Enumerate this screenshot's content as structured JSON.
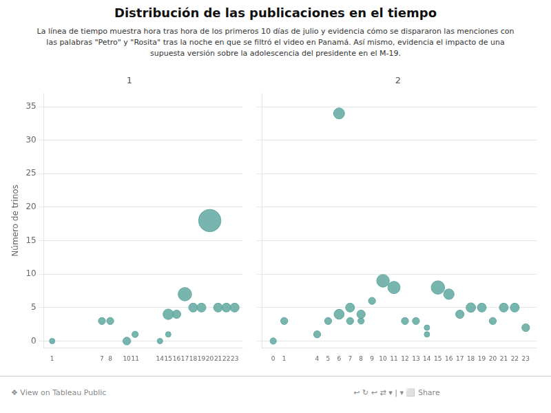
{
  "title": "Distribución de las publicaciones en el tiempo",
  "subtitle": "La línea de tiempo muestra hora tras hora de los primeros 10 días de julio y evidencia cómo se dispararon las menciones con\nlas palabras \"Petro\" y \"Rosita\" tras la noche en que se filtró el video en Panamá. Así mismo, evidencia el impacto de una\nsupuesta versión sobre la adolescencia del presidente en el M-19.",
  "annotations": [
    "❖ View on Tableau Public",
    "↩  ↻  ↩  ⇄  ▾  |  ▾  ⬜  Share"
  ],
  "chart_data": [
    {
      "type": "bubble",
      "title": "1",
      "ylabel": "Número de trinos",
      "x": [
        1,
        7,
        8,
        10,
        11,
        14,
        15,
        15,
        16,
        17,
        18,
        19,
        20,
        21,
        22,
        23
      ],
      "values": [
        0,
        3,
        3,
        0,
        1,
        0,
        1,
        4,
        4,
        7,
        5,
        5,
        18,
        5,
        5,
        5
      ],
      "sizes": [
        3,
        5,
        5,
        6,
        4,
        3,
        3,
        11,
        7,
        18,
        8,
        8,
        50,
        8,
        8,
        8
      ],
      "color": "#5fa8a0",
      "xlim": [
        0,
        24
      ],
      "xticks": [
        1,
        7,
        8,
        10,
        11,
        14,
        15,
        16,
        17,
        18,
        19,
        20,
        21,
        22,
        23
      ],
      "ylim": [
        -1,
        37
      ],
      "yticks": [
        0,
        5,
        10,
        15,
        20,
        25,
        30,
        35
      ],
      "grid": "y"
    },
    {
      "type": "bubble",
      "title": "2",
      "x": [
        0,
        1,
        4,
        5,
        6,
        6,
        7,
        7,
        8,
        8,
        9,
        10,
        11,
        12,
        13,
        14,
        14,
        15,
        16,
        17,
        18,
        19,
        20,
        21,
        22,
        23
      ],
      "values": [
        0,
        3,
        1,
        3,
        34,
        4,
        5,
        3,
        4,
        3,
        6,
        9,
        8,
        3,
        3,
        1,
        2,
        8,
        7,
        4,
        5,
        5,
        3,
        5,
        5,
        2
      ],
      "sizes": [
        4,
        5,
        5,
        5,
        12,
        10,
        8,
        5,
        7,
        4,
        5,
        16,
        15,
        5,
        5,
        3,
        3,
        18,
        11,
        7,
        9,
        8,
        5,
        8,
        8,
        6
      ],
      "color": "#5fa8a0",
      "xlim": [
        -1,
        24
      ],
      "xticks": [
        0,
        1,
        4,
        5,
        6,
        7,
        8,
        9,
        10,
        11,
        12,
        13,
        14,
        15,
        16,
        17,
        18,
        19,
        20,
        21,
        22,
        23
      ],
      "ylim": [
        -1,
        37
      ],
      "yticks": [
        0,
        5,
        10,
        15,
        20,
        25,
        30,
        35
      ],
      "grid": "y",
      "tick_labels": "x"
    }
  ]
}
